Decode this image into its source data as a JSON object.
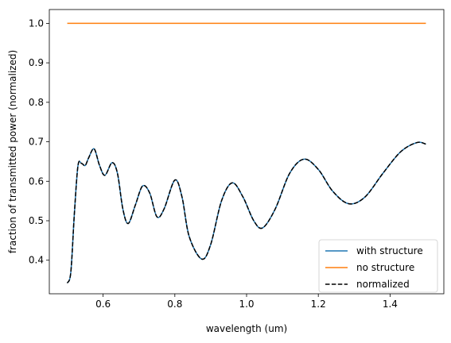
{
  "chart_data": {
    "type": "line",
    "xlabel": "wavelength (um)",
    "ylabel": "fraction of transmitted power (normalized)",
    "xlim": [
      0.45,
      1.55
    ],
    "ylim": [
      0.315,
      1.035
    ],
    "xticks": [
      0.6,
      0.8,
      1.0,
      1.2,
      1.4
    ],
    "xtick_labels": [
      "0.6",
      "0.8",
      "1.0",
      "1.2",
      "1.4"
    ],
    "yticks": [
      0.4,
      0.5,
      0.6,
      0.7,
      0.8,
      0.9,
      1.0
    ],
    "ytick_labels": [
      "0.4",
      "0.5",
      "0.6",
      "0.7",
      "0.8",
      "0.9",
      "1.0"
    ],
    "grid": false,
    "legend_position": "lower-right",
    "series": [
      {
        "name": "with structure",
        "color": "#1f77b4",
        "style": "solid",
        "x": [
          0.5,
          0.51,
          0.52,
          0.53,
          0.54,
          0.55,
          0.56,
          0.575,
          0.59,
          0.605,
          0.625,
          0.64,
          0.655,
          0.67,
          0.69,
          0.71,
          0.73,
          0.75,
          0.77,
          0.8,
          0.82,
          0.84,
          0.875,
          0.9,
          0.93,
          0.96,
          0.99,
          1.02,
          1.045,
          1.08,
          1.12,
          1.16,
          1.2,
          1.24,
          1.285,
          1.33,
          1.38,
          1.43,
          1.475,
          1.5
        ],
        "values": [
          0.342,
          0.37,
          0.52,
          0.64,
          0.645,
          0.64,
          0.66,
          0.682,
          0.64,
          0.615,
          0.647,
          0.62,
          0.53,
          0.493,
          0.54,
          0.588,
          0.57,
          0.51,
          0.53,
          0.603,
          0.56,
          0.46,
          0.403,
          0.44,
          0.55,
          0.596,
          0.56,
          0.5,
          0.482,
          0.53,
          0.62,
          0.656,
          0.63,
          0.575,
          0.543,
          0.56,
          0.62,
          0.675,
          0.698,
          0.694
        ]
      },
      {
        "name": "no structure",
        "color": "#ff7f0e",
        "style": "solid",
        "x": [
          0.5,
          1.5
        ],
        "values": [
          1.0,
          1.0
        ]
      },
      {
        "name": "normalized",
        "color": "#000000",
        "style": "dashed",
        "x": [
          0.5,
          0.51,
          0.52,
          0.53,
          0.54,
          0.55,
          0.56,
          0.575,
          0.59,
          0.605,
          0.625,
          0.64,
          0.655,
          0.67,
          0.69,
          0.71,
          0.73,
          0.75,
          0.77,
          0.8,
          0.82,
          0.84,
          0.875,
          0.9,
          0.93,
          0.96,
          0.99,
          1.02,
          1.045,
          1.08,
          1.12,
          1.16,
          1.2,
          1.24,
          1.285,
          1.33,
          1.38,
          1.43,
          1.475,
          1.5
        ],
        "values": [
          0.342,
          0.37,
          0.52,
          0.64,
          0.645,
          0.64,
          0.66,
          0.682,
          0.64,
          0.615,
          0.647,
          0.62,
          0.53,
          0.493,
          0.54,
          0.588,
          0.57,
          0.51,
          0.53,
          0.603,
          0.56,
          0.46,
          0.403,
          0.44,
          0.55,
          0.596,
          0.56,
          0.5,
          0.482,
          0.53,
          0.62,
          0.656,
          0.63,
          0.575,
          0.543,
          0.56,
          0.62,
          0.675,
          0.698,
          0.694
        ]
      }
    ]
  }
}
